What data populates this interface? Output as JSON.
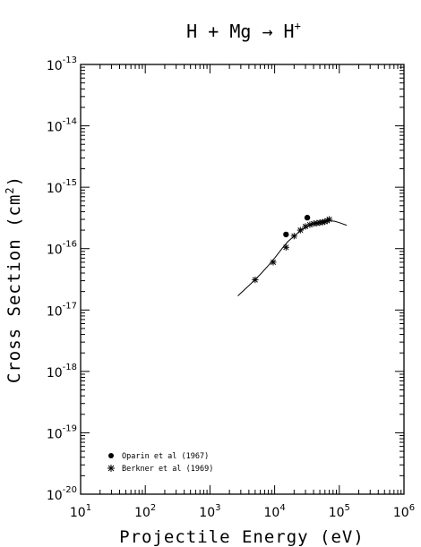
{
  "chart_data": {
    "type": "scatter",
    "title": {
      "base": "H + Mg → H",
      "sup": "+"
    },
    "xlabel": "Projectile Energy (eV)",
    "ylabel": {
      "base": "Cross Section (cm",
      "sup": "2",
      "end": ")"
    },
    "x_scale": "log",
    "y_scale": "log",
    "xlim": [
      10,
      1000000
    ],
    "ylim": [
      1e-20,
      1e-13
    ],
    "x_ticks": [
      {
        "base": "10",
        "exp": "1"
      },
      {
        "base": "10",
        "exp": "2"
      },
      {
        "base": "10",
        "exp": "3"
      },
      {
        "base": "10",
        "exp": "4"
      },
      {
        "base": "10",
        "exp": "5"
      },
      {
        "base": "10",
        "exp": "6"
      }
    ],
    "y_ticks": [
      {
        "base": "10",
        "exp": "-13"
      },
      {
        "base": "10",
        "exp": "-14"
      },
      {
        "base": "10",
        "exp": "-15"
      },
      {
        "base": "10",
        "exp": "-16"
      },
      {
        "base": "10",
        "exp": "-17"
      },
      {
        "base": "10",
        "exp": "-18"
      },
      {
        "base": "10",
        "exp": "-19"
      },
      {
        "base": "10",
        "exp": "-20"
      }
    ],
    "grid": false,
    "legend_position": "bottom-left",
    "series": [
      {
        "name": "Oparin et al (1967)",
        "marker": "filled-circle",
        "x": [
          15000,
          32000
        ],
        "y": [
          1.7e-16,
          3.2e-16
        ]
      },
      {
        "name": "Berkner et al (1969)",
        "marker": "asterisk",
        "x": [
          5000,
          9500,
          15000,
          20000,
          25000,
          30000,
          35000,
          40000,
          45000,
          50000,
          55000,
          60000,
          65000,
          70000
        ],
        "y": [
          3.1e-17,
          6e-17,
          1.05e-16,
          1.6e-16,
          2e-16,
          2.3e-16,
          2.45e-16,
          2.55e-16,
          2.6e-16,
          2.65e-16,
          2.7e-16,
          2.75e-16,
          2.85e-16,
          3e-16
        ]
      },
      {
        "name": "",
        "marker": "none",
        "x": [
          2700,
          4000,
          6000,
          8000,
          10000,
          13000,
          16000,
          20000,
          26000,
          33000,
          42000,
          55000,
          70000,
          85000,
          100000,
          130000
        ],
        "y": [
          1.7e-17,
          2.5e-17,
          3.8e-17,
          5.3e-17,
          7e-17,
          1e-16,
          1.3e-16,
          1.6e-16,
          2e-16,
          2.35e-16,
          2.6e-16,
          2.8e-16,
          2.85e-16,
          2.8e-16,
          2.65e-16,
          2.4e-16
        ]
      }
    ]
  }
}
